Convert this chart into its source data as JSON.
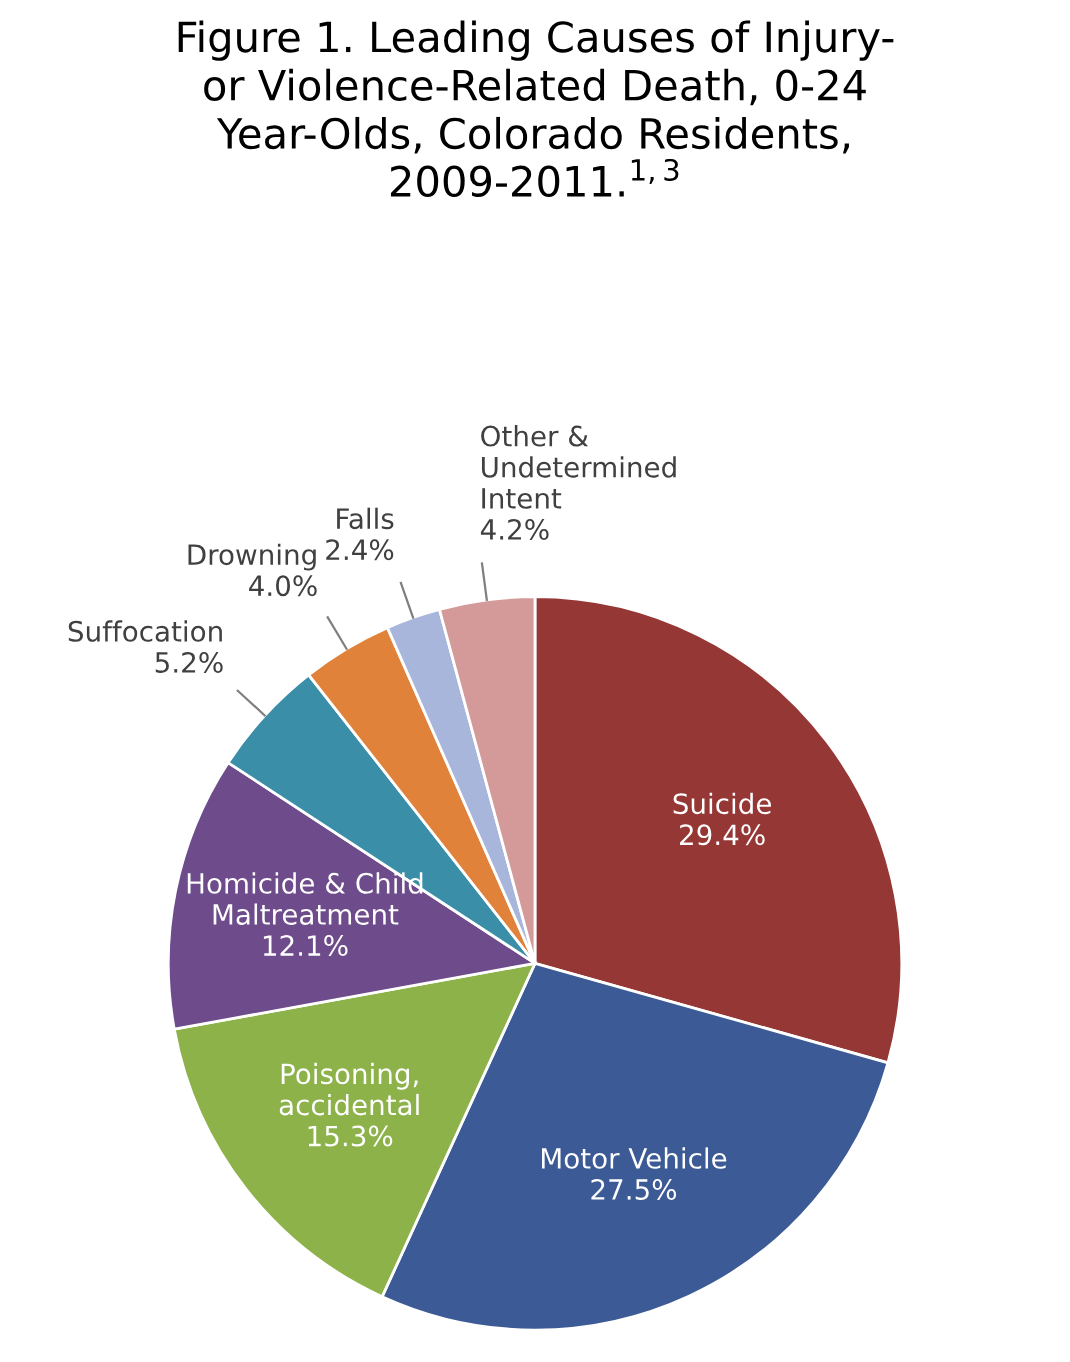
{
  "chart_data": {
    "type": "pie",
    "title": "Figure 1. Leading Causes of Injury-\nor Violence-Related Death, 0-24\nYear-Olds, Colorado Residents,\n2009-2011.$^{1,3}$",
    "categories": [
      "Suicide",
      "Motor Vehicle",
      "Poisoning,\naccidental",
      "Homicide & Child\nMaltreatment",
      "Suffocation",
      "Drowning",
      "Falls",
      "Other &\nUndetermined\nIntent"
    ],
    "values": [
      29.4,
      27.5,
      15.3,
      12.1,
      5.2,
      4.0,
      2.4,
      4.2
    ],
    "value_labels": [
      "29.4%",
      "27.5%",
      "15.3%",
      "12.1%",
      "5.2%",
      "4.0%",
      "2.4%",
      "4.2%"
    ],
    "colors": [
      "#953735",
      "#3c5a96",
      "#8db24a",
      "#6e4c8c",
      "#3a8ea8",
      "#e0823a",
      "#a9b6dc",
      "#d49a9a"
    ],
    "legend": false
  }
}
